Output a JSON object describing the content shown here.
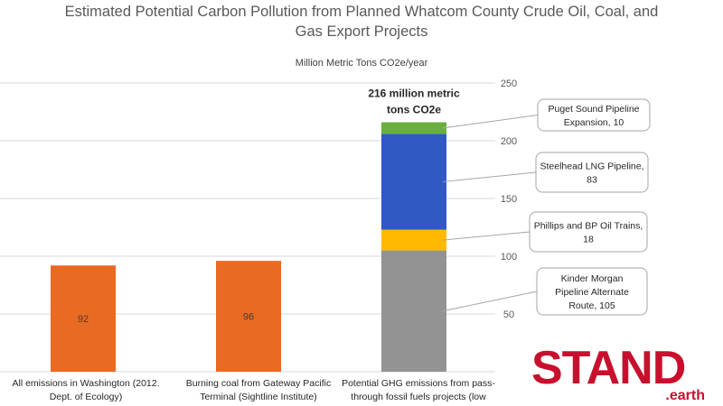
{
  "chart_data": {
    "type": "bar",
    "title": "Estimated Potential Carbon Pollution from Planned Whatcom County Crude Oil, Coal, and Gas Export Projects",
    "ylabel": "Million Metric Tons CO2e/year",
    "ylim": [
      0,
      250
    ],
    "yticks": [
      50,
      100,
      150,
      200,
      250
    ],
    "grid": true,
    "categories": [
      {
        "line1": "All emissions in Washington (2012.",
        "line2": "Dept. of Ecology)"
      },
      {
        "line1": "Burning coal from Gateway Pacific",
        "line2": "Terminal (Sightline Institute)"
      },
      {
        "line1": "Potential GHG emissions from pass-",
        "line2": "through fossil fuels projects (low"
      }
    ],
    "simple_bars": [
      {
        "value": 92,
        "label": "92",
        "color": "#E96A22"
      },
      {
        "value": 96,
        "label": "96",
        "color": "#E96A22"
      }
    ],
    "stack": [
      {
        "name": "Kinder Morgan Pipeline Alternate Route",
        "value": 105,
        "color": "#939393",
        "callout": [
          "Kinder Morgan",
          "Pipeline Alternate",
          "Route,  105"
        ]
      },
      {
        "name": "Phillips and BP Oil Trains",
        "value": 18,
        "color": "#FFBA00",
        "callout": [
          "Phillips and BP Oil Trains,",
          "18"
        ]
      },
      {
        "name": "Steelhead LNG Pipeline",
        "value": 83,
        "color": "#3159C4",
        "callout": [
          "Steelhead LNG Pipeline,",
          "83"
        ]
      },
      {
        "name": "Puget Sound Pipeline Expansion",
        "value": 10,
        "color": "#6AAE3E",
        "callout": [
          "Puget Sound Pipeline",
          "Expansion,  10"
        ]
      }
    ],
    "total_label": [
      "216  million metric",
      "tons CO2e"
    ]
  },
  "logo": {
    "main": "STAND",
    "sub": ".earth"
  }
}
